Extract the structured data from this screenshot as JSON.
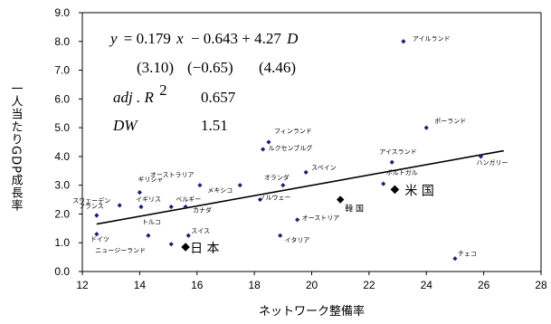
{
  "chart_data": {
    "type": "scatter",
    "xlabel": "ネットワーク整備率",
    "ylabel": "一人当たりGDP成長率",
    "xlim": [
      12,
      28
    ],
    "ylim": [
      0,
      9
    ],
    "x_ticks": [
      "12",
      "14",
      "16",
      "18",
      "20",
      "22",
      "24",
      "26",
      "28"
    ],
    "y_ticks": [
      "0.0",
      "1.0",
      "2.0",
      "3.0",
      "4.0",
      "5.0",
      "6.0",
      "7.0",
      "8.0",
      "9.0"
    ],
    "grid": false,
    "points": [
      {
        "label": "アイルランド",
        "x": 23.2,
        "y": 8.0,
        "size": "small"
      },
      {
        "label": "ポーランド",
        "x": 24.0,
        "y": 5.0,
        "size": "small"
      },
      {
        "label": "フィンランド",
        "x": 18.5,
        "y": 4.5,
        "size": "small"
      },
      {
        "label": "ルクセンブルグ",
        "x": 18.3,
        "y": 4.25,
        "size": "small"
      },
      {
        "label": "ハンガリー",
        "x": 25.9,
        "y": 4.0,
        "size": "small"
      },
      {
        "label": "アイスランド",
        "x": 22.8,
        "y": 3.8,
        "size": "small"
      },
      {
        "label": "スペイン",
        "x": 19.8,
        "y": 3.45,
        "size": "small"
      },
      {
        "label": "オランダ",
        "x": 19.0,
        "y": 3.0,
        "size": "small"
      },
      {
        "label": "ポルトガル",
        "x": 22.5,
        "y": 3.05,
        "size": "small"
      },
      {
        "label": "オーストラリア",
        "x": 16.1,
        "y": 3.0,
        "size": "small"
      },
      {
        "label": "メキシコ",
        "x": 17.5,
        "y": 3.0,
        "size": "small"
      },
      {
        "label": "ギリシャ",
        "x": 14.0,
        "y": 2.75,
        "size": "small"
      },
      {
        "label": "スウェーデン",
        "x": 13.3,
        "y": 2.3,
        "size": "small"
      },
      {
        "label": "イギリス",
        "x": 14.05,
        "y": 2.25,
        "size": "small"
      },
      {
        "label": "ベルギー",
        "x": 15.1,
        "y": 2.25,
        "size": "small"
      },
      {
        "label": "カナダ",
        "x": 15.6,
        "y": 2.25,
        "size": "small"
      },
      {
        "label": "ノルウェー",
        "x": 18.2,
        "y": 2.5,
        "size": "small"
      },
      {
        "label": "フランス",
        "x": 12.5,
        "y": 1.95,
        "size": "small"
      },
      {
        "label": "オーストリア",
        "x": 19.5,
        "y": 1.8,
        "size": "small"
      },
      {
        "label": "トルコ",
        "x": 14.3,
        "y": 1.25,
        "size": "small"
      },
      {
        "label": "スイス",
        "x": 15.7,
        "y": 1.25,
        "size": "small"
      },
      {
        "label": "ドイツ",
        "x": 12.5,
        "y": 1.3,
        "size": "small"
      },
      {
        "label": "イタリア",
        "x": 18.9,
        "y": 1.25,
        "size": "small"
      },
      {
        "label": "ニュージーランド",
        "x": 15.1,
        "y": 0.95,
        "size": "small"
      },
      {
        "label": "日 本",
        "x": 15.6,
        "y": 0.85,
        "size": "big"
      },
      {
        "label": "韓 国",
        "x": 21.0,
        "y": 2.5,
        "size": "mid"
      },
      {
        "label": "米 国",
        "x": 22.9,
        "y": 2.85,
        "size": "big"
      },
      {
        "label": "チェコ",
        "x": 25.0,
        "y": 0.45,
        "size": "small"
      }
    ],
    "trendline": {
      "x": [
        12.5,
        26.7
      ],
      "y": [
        1.65,
        4.2
      ]
    },
    "annotation": {
      "equation_lhs": "y",
      "equation_rhs_a": "= 0.179",
      "equation_x": "x",
      "equation_rhs_b": "− 0.643 + 4.27",
      "equation_d": "D",
      "t_values": [
        "(3.10)",
        "(−0.65)",
        "(4.46)"
      ],
      "adj_r2_label": "adj . R",
      "adj_r2_sup": "2",
      "adj_r2_value": "0.657",
      "dw_label": "DW",
      "dw_value": "1.51"
    }
  }
}
